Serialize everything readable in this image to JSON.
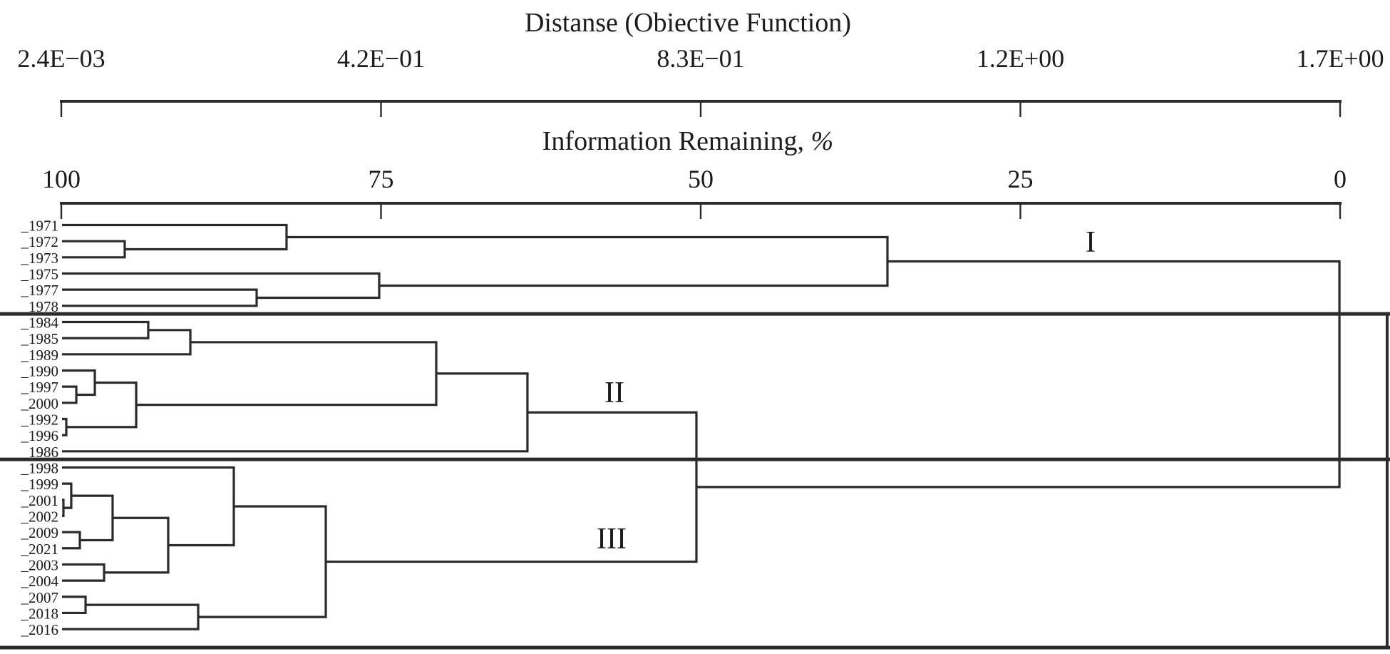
{
  "figure": {
    "background": "#ffffff",
    "line_color": "#2b2b2b",
    "text_color": "#1c1c1c"
  },
  "axis_distance": {
    "title": "Distanse (Obiective Function)",
    "tick_labels": [
      "2.4E−03",
      "4.2E−01",
      "8.3E−01",
      "1.2E+00",
      "1.7E+00"
    ]
  },
  "axis_information": {
    "title_main": "Information Remaining, ",
    "title_percent": "%",
    "tick_labels": [
      "100",
      "75",
      "50",
      "25",
      "0"
    ]
  },
  "chart_data": {
    "type": "dendrogram",
    "orientation": "horizontal",
    "distance_axis": {
      "label": "Distanse (Obiective Function)",
      "min": 0.0024,
      "max": 1.7,
      "tick_labels": [
        "2.4E−03",
        "4.2E−01",
        "8.3E−01",
        "1.2E+00",
        "1.7E+00"
      ]
    },
    "information_axis": {
      "label": "Information Remaining, %",
      "tick_values": [
        100,
        75,
        50,
        25,
        0
      ]
    },
    "leaves": [
      "_1971",
      "_1972",
      "_1973",
      "_1975",
      "_1977",
      "_1978",
      "_1984",
      "_1985",
      "_1989",
      "_1990",
      "_1997",
      "_2000",
      "_1992",
      "_1996",
      "_1986",
      "_1998",
      "_1999",
      "_2001",
      "_2002",
      "_2009",
      "_2021",
      "_2003",
      "_2004",
      "_2007",
      "_2018",
      "_2016"
    ],
    "merges": [
      {
        "id": "I-a",
        "children": [
          "_1972",
          "_1973"
        ],
        "distance": 0.0866
      },
      {
        "id": "I-b",
        "children": [
          "_1971",
          "I-a"
        ],
        "distance": 0.3014
      },
      {
        "id": "I-c",
        "children": [
          "_1977",
          "_1978"
        ],
        "distance": 0.2617
      },
      {
        "id": "I-d",
        "children": [
          "_1975",
          "I-c"
        ],
        "distance": 0.4244
      },
      {
        "id": "I-e",
        "children": [
          "I-b",
          "I-d"
        ],
        "distance": 1.0991
      },
      {
        "id": "II-a",
        "children": [
          "_1984",
          "_1985"
        ],
        "distance": 0.1178
      },
      {
        "id": "II-b",
        "children": [
          "II-a",
          "_1989"
        ],
        "distance": 0.1737
      },
      {
        "id": "II-c",
        "children": [
          "_1997",
          "_2000"
        ],
        "distance": 0.0223
      },
      {
        "id": "II-d",
        "children": [
          "_1990",
          "II-c"
        ],
        "distance": 0.0469
      },
      {
        "id": "II-e",
        "children": [
          "_1992",
          "_1996"
        ],
        "distance": 0.009
      },
      {
        "id": "II-f",
        "children": [
          "II-d",
          "II-e"
        ],
        "distance": 0.1018
      },
      {
        "id": "II-g",
        "children": [
          "II-b",
          "II-f"
        ],
        "distance": 0.5001
      },
      {
        "id": "II-h",
        "children": [
          "II-g",
          "_1986"
        ],
        "distance": 0.6212
      },
      {
        "id": "III-a",
        "children": [
          "_2001",
          "_2002"
        ],
        "distance": 0.0052
      },
      {
        "id": "III-b",
        "children": [
          "_1999",
          "III-a"
        ],
        "distance": 0.0156
      },
      {
        "id": "III-c",
        "children": [
          "_2009",
          "_2021"
        ],
        "distance": 0.027
      },
      {
        "id": "III-d",
        "children": [
          "III-b",
          "III-c"
        ],
        "distance": 0.0705
      },
      {
        "id": "III-e",
        "children": [
          "_2003",
          "_2004"
        ],
        "distance": 0.0592
      },
      {
        "id": "III-f",
        "children": [
          "III-d",
          "III-e"
        ],
        "distance": 0.1443
      },
      {
        "id": "III-g",
        "children": [
          "_1998",
          "III-f"
        ],
        "distance": 0.2314
      },
      {
        "id": "III-h",
        "children": [
          "_2007",
          "_2018"
        ],
        "distance": 0.0346
      },
      {
        "id": "III-i",
        "children": [
          "III-h",
          "_2016"
        ],
        "distance": 0.1841
      },
      {
        "id": "III-j",
        "children": [
          "III-g",
          "III-i"
        ],
        "distance": 0.3535
      },
      {
        "id": "II+III",
        "children": [
          "II-h",
          "III-j"
        ],
        "distance": 0.8455
      },
      {
        "id": "root",
        "children": [
          "I-e",
          "II+III"
        ],
        "distance": 1.6991
      }
    ],
    "clusters": [
      {
        "label": "I",
        "leaves": [
          "_1971",
          "_1972",
          "_1973",
          "_1975",
          "_1977",
          "_1978"
        ]
      },
      {
        "label": "II",
        "leaves": [
          "_1984",
          "_1985",
          "_1989",
          "_1990",
          "_1997",
          "_2000",
          "_1992",
          "_1996",
          "_1986"
        ]
      },
      {
        "label": "III",
        "leaves": [
          "_1998",
          "_1999",
          "_2001",
          "_2002",
          "_2009",
          "_2021",
          "_2003",
          "_2004",
          "_2007",
          "_2018",
          "_2016"
        ]
      }
    ],
    "legend_position": "none",
    "grid": false
  }
}
